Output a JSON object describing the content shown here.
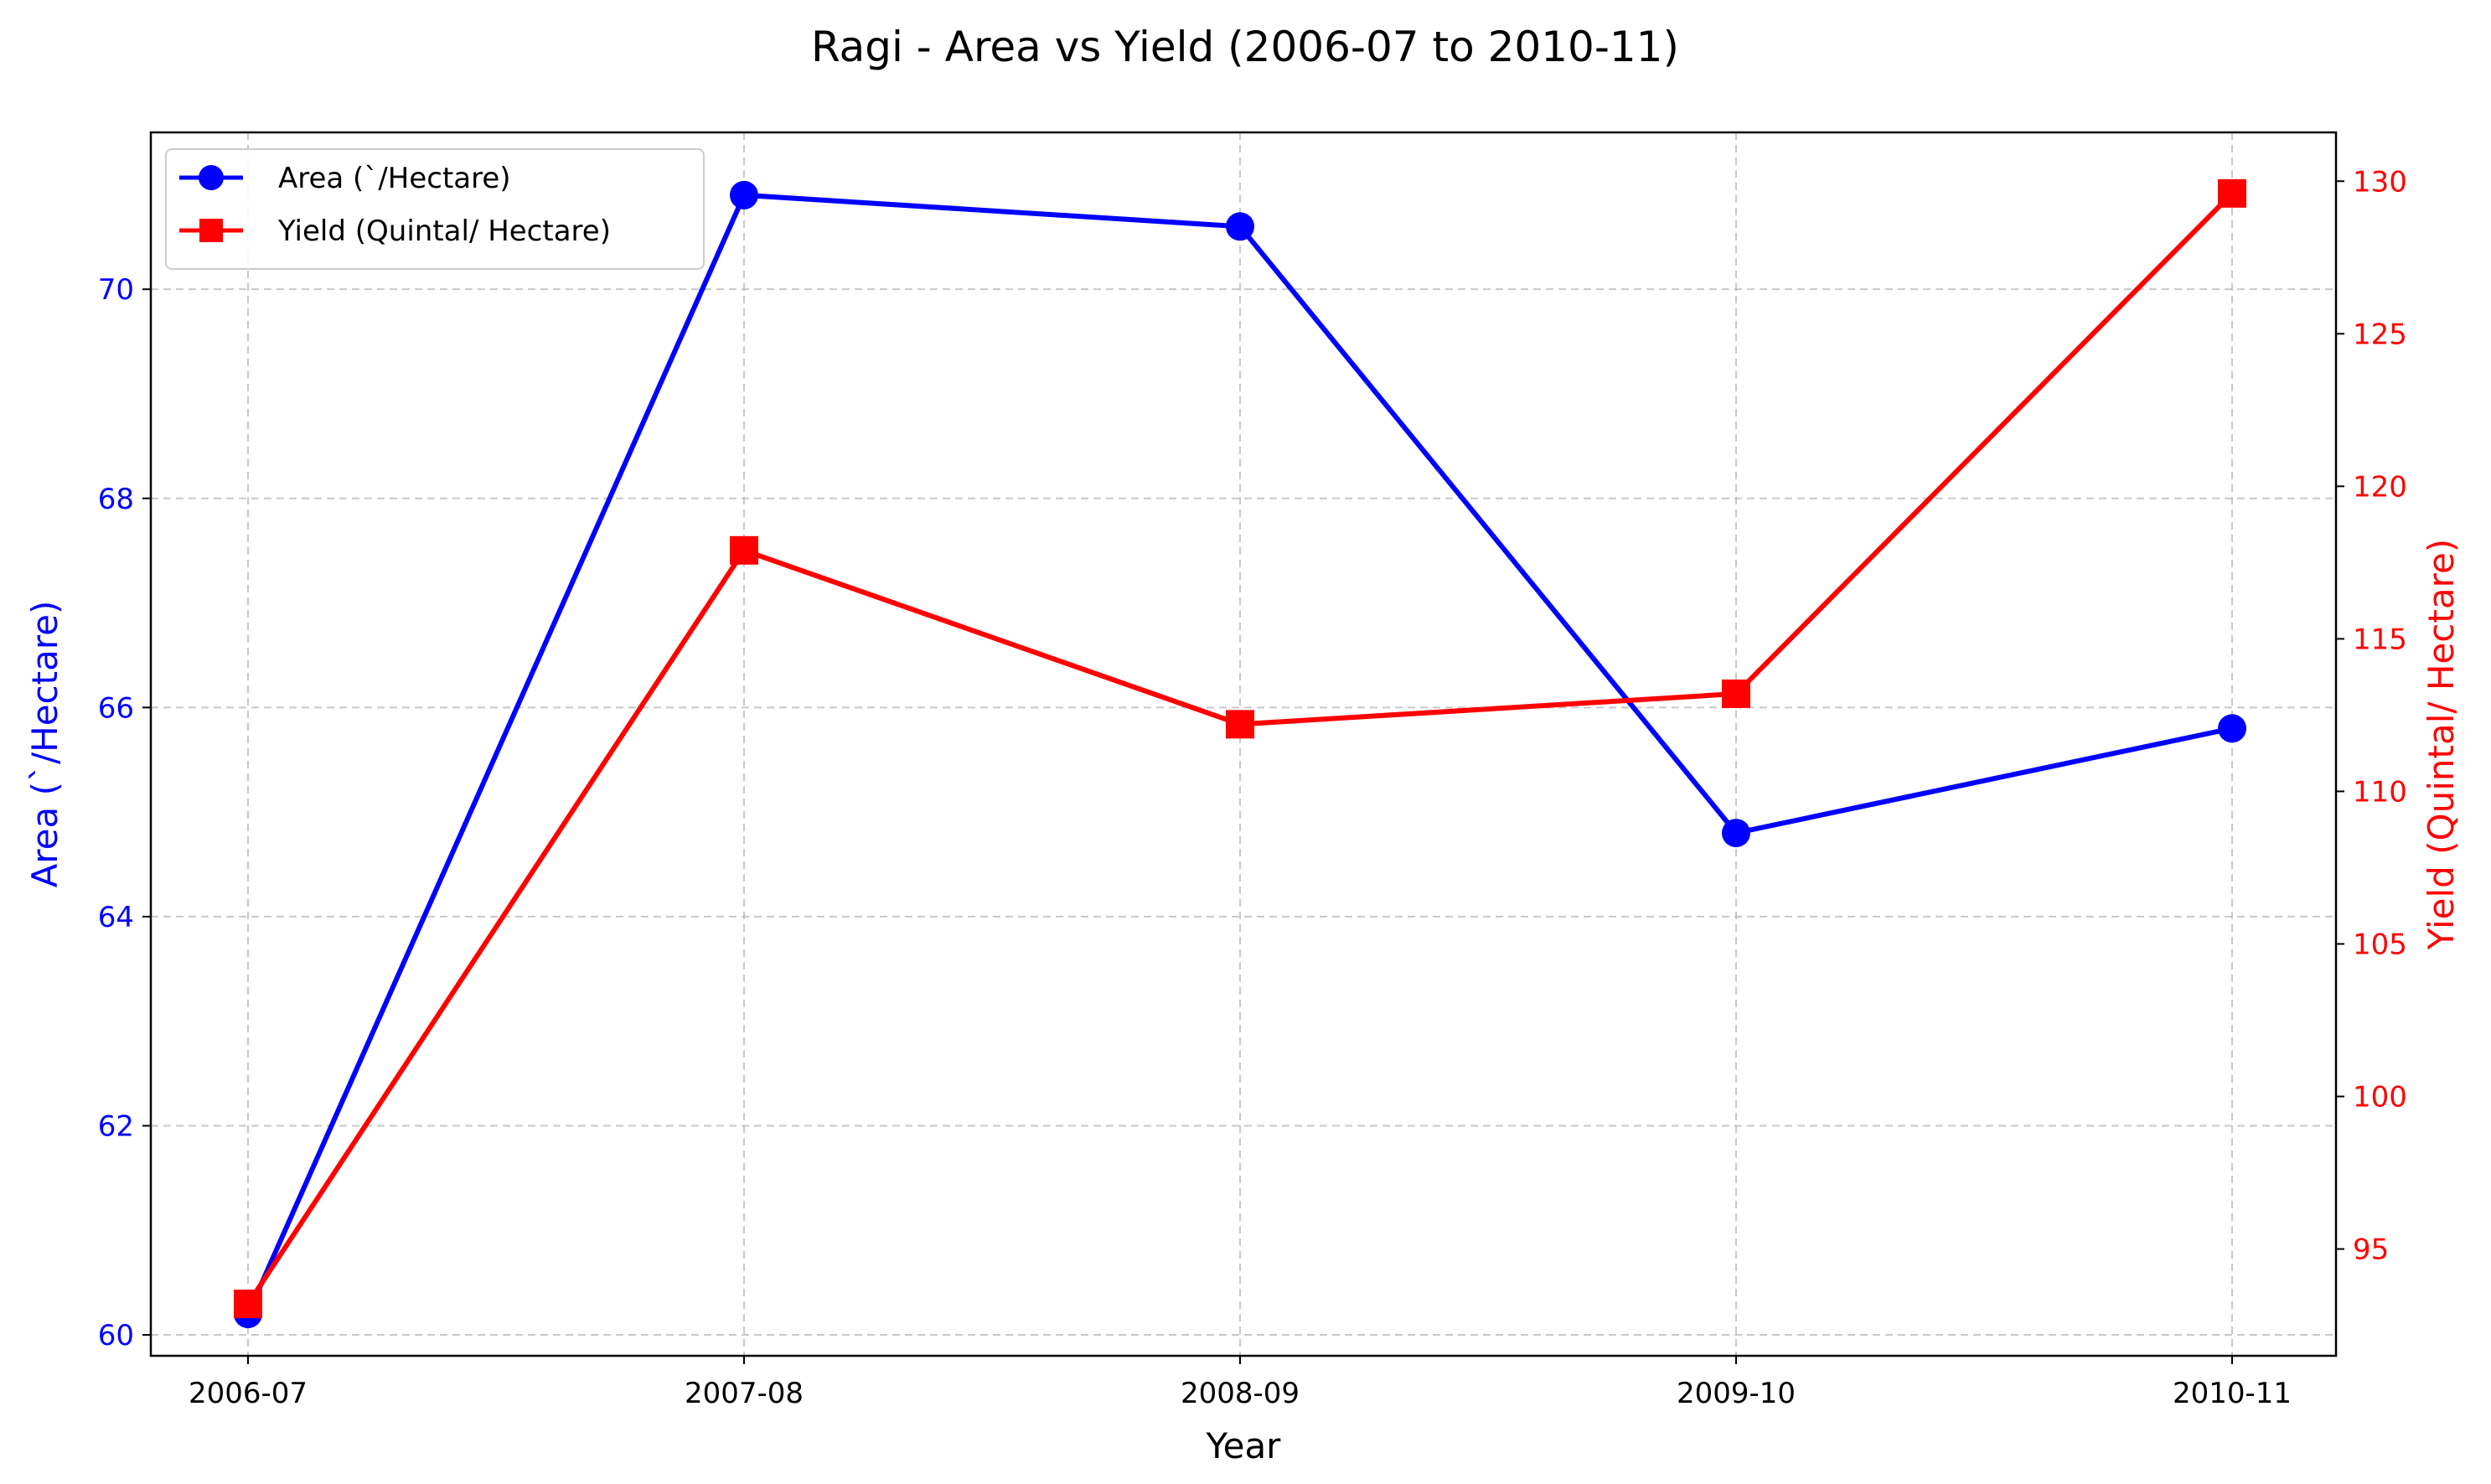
{
  "chart_data": {
    "type": "line",
    "title": "Ragi - Area vs Yield (2006-07 to 2010-11)",
    "xlabel": "Year",
    "ylabel_left": "Area (`/Hectare)",
    "ylabel_right": "Yield (Quintal/ Hectare)",
    "categories": [
      "2006-07",
      "2007-08",
      "2008-09",
      "2009-10",
      "2010-11"
    ],
    "ylim_left": [
      59.8,
      71.5
    ],
    "ylim_right": [
      91.5,
      131.6
    ],
    "yticks_left": [
      60,
      62,
      64,
      66,
      68,
      70
    ],
    "yticks_right": [
      95,
      100,
      105,
      110,
      115,
      120,
      125,
      130
    ],
    "grid": true,
    "legend_position": "top-left",
    "series": [
      {
        "name": "Area (`/Hectare)",
        "axis": "left",
        "marker": "circle",
        "color": "#0000ff",
        "values": [
          60.2,
          70.9,
          70.6,
          64.8,
          65.8
        ]
      },
      {
        "name": "Yield (Quintal/ Hectare)",
        "axis": "right",
        "marker": "square",
        "color": "#ff0000",
        "values": [
          93.2,
          117.9,
          112.2,
          113.2,
          129.6
        ]
      }
    ]
  }
}
